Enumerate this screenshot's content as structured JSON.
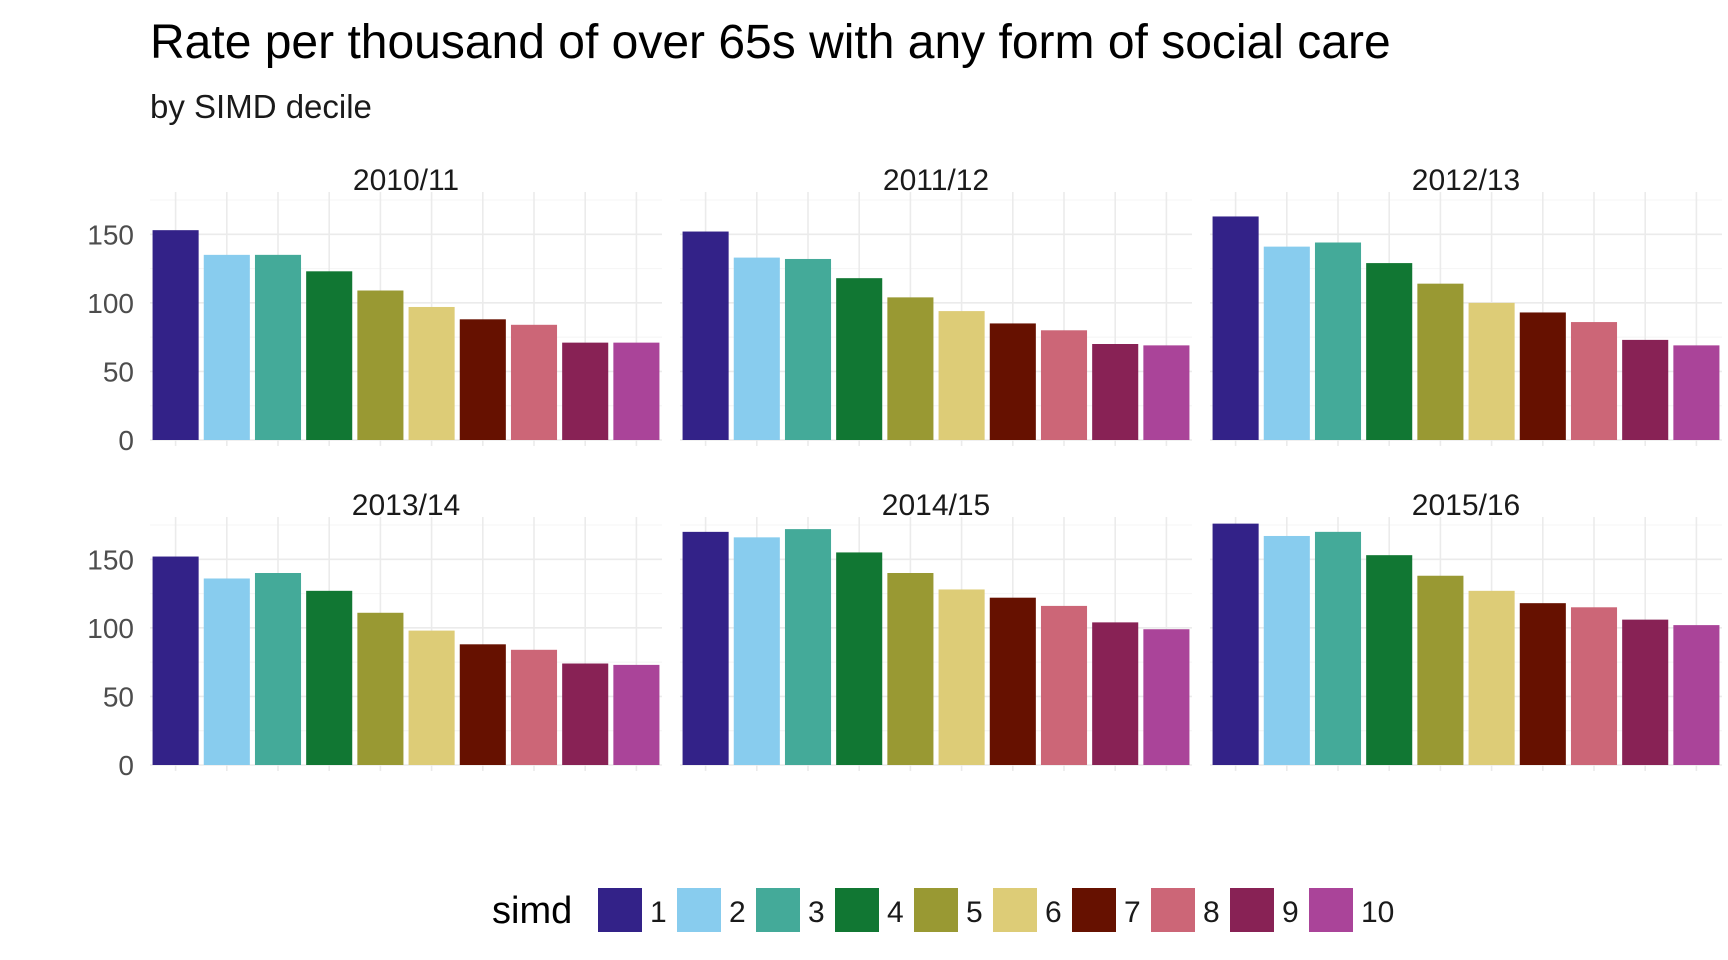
{
  "chart_data": {
    "type": "bar",
    "title": "Rate per thousand of over 65s with any form of social care",
    "subtitle": "by SIMD decile",
    "xlabel": "",
    "ylabel": "",
    "ylim": [
      0,
      175
    ],
    "yticks": [
      0,
      50,
      100,
      150
    ],
    "grid": true,
    "legend": {
      "title": "simd",
      "position": "bottom",
      "entries": [
        "1",
        "2",
        "3",
        "4",
        "5",
        "6",
        "7",
        "8",
        "9",
        "10"
      ]
    },
    "categories": [
      "1",
      "2",
      "3",
      "4",
      "5",
      "6",
      "7",
      "8",
      "9",
      "10"
    ],
    "colors": [
      "#332288",
      "#88CCEE",
      "#44AA99",
      "#117733",
      "#999933",
      "#DDCC77",
      "#661100",
      "#CC6677",
      "#882255",
      "#AA4499"
    ],
    "facets": [
      {
        "label": "2010/11",
        "values": [
          153,
          135,
          135,
          123,
          109,
          97,
          88,
          84,
          71,
          71
        ]
      },
      {
        "label": "2011/12",
        "values": [
          152,
          133,
          132,
          118,
          104,
          94,
          85,
          80,
          70,
          69
        ]
      },
      {
        "label": "2012/13",
        "values": [
          163,
          141,
          144,
          129,
          114,
          100,
          93,
          86,
          73,
          69
        ]
      },
      {
        "label": "2013/14",
        "values": [
          152,
          136,
          140,
          127,
          111,
          98,
          88,
          84,
          74,
          73
        ]
      },
      {
        "label": "2014/15",
        "values": [
          170,
          166,
          172,
          155,
          140,
          128,
          122,
          116,
          104,
          99
        ]
      },
      {
        "label": "2015/16",
        "values": [
          176,
          167,
          170,
          153,
          138,
          127,
          118,
          115,
          106,
          102
        ]
      }
    ]
  }
}
